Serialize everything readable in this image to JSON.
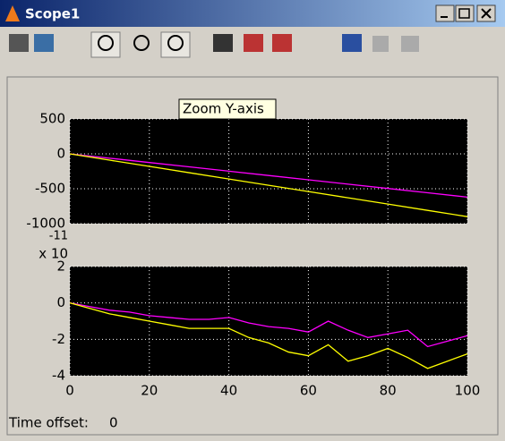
{
  "window": {
    "title": "Scope1"
  },
  "tooltip": "Zoom Y-axis",
  "footer": {
    "label": "Time offset:",
    "value": 0
  },
  "chart_data": [
    {
      "type": "line",
      "x": [
        0,
        10,
        20,
        30,
        40,
        50,
        60,
        70,
        80,
        90,
        100
      ],
      "series": [
        {
          "color": "#ff00ff",
          "values": [
            0,
            -62,
            -124,
            -186,
            -248,
            -310,
            -372,
            -434,
            -496,
            -558,
            -620
          ]
        },
        {
          "color": "#ffff00",
          "values": [
            0,
            -90,
            -180,
            -270,
            -360,
            -450,
            -540,
            -630,
            -720,
            -810,
            -900
          ]
        }
      ],
      "xlim": [
        0,
        100
      ],
      "xticks": [
        0,
        20,
        40,
        60,
        80,
        100
      ],
      "show_xtick_labels": false,
      "ylim": [
        -1000,
        500
      ],
      "yticks": [
        500,
        0,
        -500,
        -1000
      ],
      "grid": true
    },
    {
      "type": "line",
      "x": [
        0,
        5,
        10,
        15,
        20,
        25,
        30,
        35,
        40,
        45,
        50,
        55,
        60,
        65,
        70,
        75,
        80,
        85,
        90,
        95,
        100
      ],
      "series": [
        {
          "color": "#ff00ff",
          "values": [
            0,
            -0.2,
            -0.4,
            -0.5,
            -0.7,
            -0.8,
            -0.9,
            -0.9,
            -0.8,
            -1.1,
            -1.3,
            -1.4,
            -1.6,
            -1.0,
            -1.5,
            -1.9,
            -1.7,
            -1.5,
            -2.4,
            -2.1,
            -1.8
          ]
        },
        {
          "color": "#ffff00",
          "values": [
            0,
            -0.3,
            -0.6,
            -0.8,
            -1.0,
            -1.2,
            -1.4,
            -1.4,
            -1.4,
            -1.9,
            -2.2,
            -2.7,
            -2.9,
            -2.3,
            -3.2,
            -2.9,
            -2.5,
            -3.0,
            -3.6,
            -3.2,
            -2.8
          ]
        }
      ],
      "y_exponent": {
        "base_label": "x 10",
        "power": -11
      },
      "xlim": [
        0,
        100
      ],
      "xticks": [
        0,
        20,
        40,
        60,
        80,
        100
      ],
      "show_xtick_labels": true,
      "ylim": [
        -4,
        2
      ],
      "yticks": [
        2,
        0,
        -2,
        -4
      ],
      "grid": true
    }
  ]
}
